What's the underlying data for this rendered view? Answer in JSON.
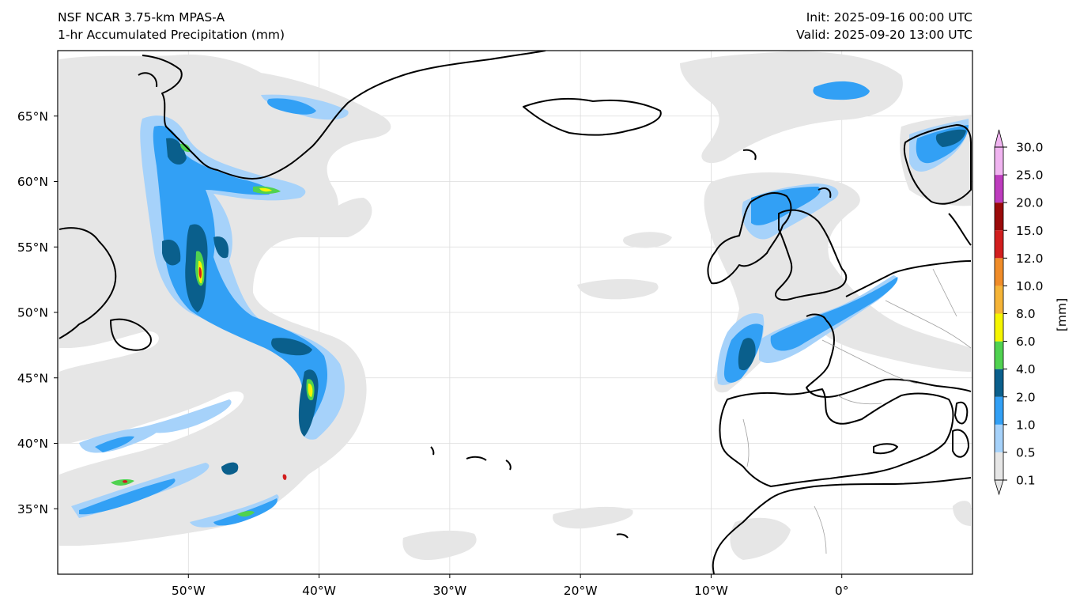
{
  "header": {
    "model": "NSF NCAR 3.75-km MPAS-A",
    "field": "1-hr Accumulated Precipitation (mm)",
    "init": "Init: 2025-09-16 00:00 UTC",
    "valid": "Valid: 2025-09-20 13:00 UTC"
  },
  "map": {
    "lon_range": [
      -60,
      10
    ],
    "lat_range": [
      30,
      70
    ],
    "lat_ticks": [
      {
        "value": 65,
        "label": "65°N"
      },
      {
        "value": 60,
        "label": "60°N"
      },
      {
        "value": 55,
        "label": "55°N"
      },
      {
        "value": 50,
        "label": "50°N"
      },
      {
        "value": 45,
        "label": "45°N"
      },
      {
        "value": 40,
        "label": "40°N"
      },
      {
        "value": 35,
        "label": "35°N"
      }
    ],
    "lon_ticks": [
      {
        "value": -50,
        "label": "50°W"
      },
      {
        "value": -40,
        "label": "40°W"
      },
      {
        "value": -30,
        "label": "30°W"
      },
      {
        "value": -20,
        "label": "20°W"
      },
      {
        "value": -10,
        "label": "10°W"
      },
      {
        "value": 0,
        "label": "0°"
      }
    ],
    "grid": true
  },
  "colorbar": {
    "unit_label": "[mm]",
    "levels": [
      "0.1",
      "0.5",
      "1.0",
      "2.0",
      "4.0",
      "6.0",
      "8.0",
      "10.0",
      "12.0",
      "15.0",
      "20.0",
      "25.0",
      "30.0"
    ],
    "colors": [
      "#e6e6e6",
      "#a6d2fa",
      "#32a0f5",
      "#0a5f8c",
      "#50d250",
      "#f5f500",
      "#f5b437",
      "#f08c28",
      "#d21e1e",
      "#9b0a0a",
      "#be3cbe",
      "#f0b4f0"
    ],
    "extend": "both"
  },
  "colors": {
    "land_outline": "#000000",
    "border": "#a0a0a0",
    "grid": "#dcdcdc"
  }
}
